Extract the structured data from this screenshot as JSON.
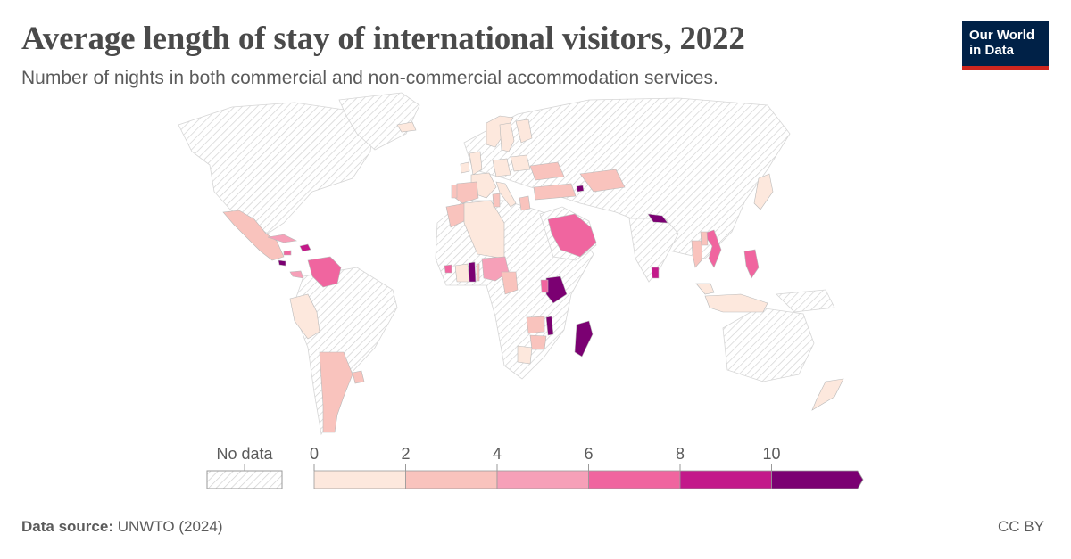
{
  "header": {
    "title": "Average length of stay of international visitors, 2022",
    "subtitle": "Number of nights in both commercial and non-commercial accommodation services."
  },
  "logo": {
    "line1": "Our World",
    "line2": "in Data"
  },
  "legend": {
    "no_data_label": "No data",
    "tick_labels": [
      "0",
      "2",
      "4",
      "6",
      "8",
      "10"
    ],
    "bins": [
      {
        "from": 0,
        "to": 2,
        "color": "#fde8dd"
      },
      {
        "from": 2,
        "to": 4,
        "color": "#f9c3bd"
      },
      {
        "from": 4,
        "to": 6,
        "color": "#f6a0b8"
      },
      {
        "from": 6,
        "to": 8,
        "color": "#f0659f"
      },
      {
        "from": 8,
        "to": 10,
        "color": "#c3198a"
      },
      {
        "from": 10,
        "to": null,
        "color": "#7b0072"
      }
    ]
  },
  "footer": {
    "source_label": "Data source:",
    "source_value": "UNWTO (2024)",
    "license": "CC BY"
  },
  "colors": {
    "no_data_fill": "#ffffff",
    "no_data_hatch": "#cfcfcf",
    "border": "#b9b9b9"
  },
  "chart_data": {
    "type": "choropleth",
    "title": "Average length of stay of international visitors, 2022",
    "subtitle": "Number of nights in both commercial and non-commercial accommodation services.",
    "unit": "nights",
    "scale_breaks": [
      0,
      2,
      4,
      6,
      8,
      10
    ],
    "regions": [
      {
        "name": "Mexico",
        "bin": 1
      },
      {
        "name": "Dominican Republic",
        "bin": 4
      },
      {
        "name": "Cuba",
        "bin": 2
      },
      {
        "name": "Jamaica",
        "bin": 3
      },
      {
        "name": "El Salvador",
        "bin": 5
      },
      {
        "name": "Panama",
        "bin": 2
      },
      {
        "name": "Venezuela",
        "bin": 3
      },
      {
        "name": "Peru",
        "bin": 0
      },
      {
        "name": "Argentina",
        "bin": 1
      },
      {
        "name": "Uruguay",
        "bin": 1
      },
      {
        "name": "Iceland",
        "bin": 0
      },
      {
        "name": "Norway",
        "bin": 0
      },
      {
        "name": "Sweden",
        "bin": 0
      },
      {
        "name": "Finland",
        "bin": 0
      },
      {
        "name": "Ireland",
        "bin": 0
      },
      {
        "name": "United Kingdom",
        "bin": 0
      },
      {
        "name": "France",
        "bin": 0
      },
      {
        "name": "Spain",
        "bin": 1
      },
      {
        "name": "Portugal",
        "bin": 1
      },
      {
        "name": "Italy",
        "bin": 0
      },
      {
        "name": "Germany",
        "bin": 0
      },
      {
        "name": "Poland",
        "bin": 0
      },
      {
        "name": "Ukraine",
        "bin": 1
      },
      {
        "name": "Greece",
        "bin": 1
      },
      {
        "name": "Turkey",
        "bin": 1
      },
      {
        "name": "Armenia",
        "bin": 5
      },
      {
        "name": "Kazakhstan",
        "bin": 1
      },
      {
        "name": "Morocco",
        "bin": 1
      },
      {
        "name": "Algeria",
        "bin": 0
      },
      {
        "name": "Tunisia",
        "bin": 1
      },
      {
        "name": "Sierra Leone",
        "bin": 3
      },
      {
        "name": "Côte d'Ivoire",
        "bin": 0
      },
      {
        "name": "Ghana",
        "bin": 5
      },
      {
        "name": "Togo",
        "bin": 1
      },
      {
        "name": "Nigeria",
        "bin": 2
      },
      {
        "name": "Cameroon",
        "bin": 1
      },
      {
        "name": "Saudi Arabia",
        "bin": 3
      },
      {
        "name": "Nepal",
        "bin": 5
      },
      {
        "name": "Sri Lanka",
        "bin": 4
      },
      {
        "name": "Kenya",
        "bin": 5
      },
      {
        "name": "Uganda",
        "bin": 3
      },
      {
        "name": "Malawi",
        "bin": 5
      },
      {
        "name": "Zambia",
        "bin": 1
      },
      {
        "name": "Zimbabwe",
        "bin": 1
      },
      {
        "name": "Botswana",
        "bin": 0
      },
      {
        "name": "Madagascar",
        "bin": 5
      },
      {
        "name": "Vietnam",
        "bin": 3
      },
      {
        "name": "Thailand",
        "bin": 1
      },
      {
        "name": "Laos",
        "bin": 1
      },
      {
        "name": "Philippines",
        "bin": 3
      },
      {
        "name": "Malaysia",
        "bin": 0
      },
      {
        "name": "Indonesia",
        "bin": 0
      },
      {
        "name": "Japan",
        "bin": 0
      },
      {
        "name": "New Zealand",
        "bin": 0
      }
    ]
  }
}
